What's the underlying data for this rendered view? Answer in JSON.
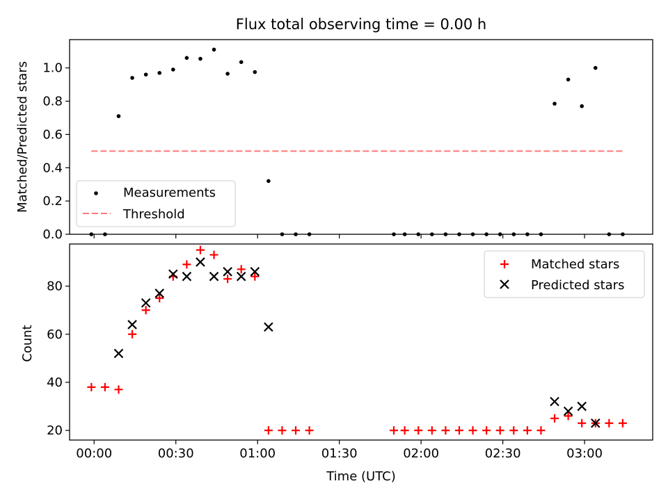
{
  "chart_data": [
    {
      "type": "scatter",
      "panel": "top",
      "title": "Flux total observing time = 0.00 h",
      "xlabel": "",
      "ylabel": "Matched/Predicted stars",
      "xlim": [
        "-00:09",
        "03:25"
      ],
      "ylim": [
        0.0,
        1.17
      ],
      "yticks": [
        0.0,
        0.2,
        0.4,
        0.6,
        0.8,
        1.0
      ],
      "ytick_labels": [
        "0.0",
        "0.2",
        "0.4",
        "0.6",
        "0.8",
        "1.0"
      ],
      "grid": false,
      "legend_position": "bottom-left",
      "series": [
        {
          "name": "Measurements",
          "marker": "dot",
          "color": "#000000",
          "points": [
            [
              "-00:01",
              0.0
            ],
            [
              "00:04",
              0.0
            ],
            [
              "00:09",
              0.71
            ],
            [
              "00:14",
              0.94
            ],
            [
              "00:19",
              0.96
            ],
            [
              "00:24",
              0.97
            ],
            [
              "00:29",
              0.99
            ],
            [
              "00:34",
              1.06
            ],
            [
              "00:39",
              1.055
            ],
            [
              "00:44",
              1.11
            ],
            [
              "00:49",
              0.965
            ],
            [
              "00:54",
              1.035
            ],
            [
              "00:59",
              0.975
            ],
            [
              "01:04",
              0.32
            ],
            [
              "01:09",
              0.0
            ],
            [
              "01:14",
              0.0
            ],
            [
              "01:19",
              0.0
            ],
            [
              "01:50",
              0.0
            ],
            [
              "01:54",
              0.0
            ],
            [
              "01:59",
              0.0
            ],
            [
              "02:04",
              0.0
            ],
            [
              "02:09",
              0.0
            ],
            [
              "02:14",
              0.0
            ],
            [
              "02:19",
              0.0
            ],
            [
              "02:24",
              0.0
            ],
            [
              "02:29",
              0.0
            ],
            [
              "02:34",
              0.0
            ],
            [
              "02:39",
              0.0
            ],
            [
              "02:44",
              0.0
            ],
            [
              "02:49",
              0.785
            ],
            [
              "02:54",
              0.93
            ],
            [
              "02:59",
              0.77
            ],
            [
              "03:04",
              1.0
            ],
            [
              "03:09",
              0.0
            ],
            [
              "03:14",
              0.0
            ]
          ]
        },
        {
          "name": "Threshold",
          "marker": "dashed-line",
          "color": "#ff7777",
          "points": [
            [
              "-00:01",
              0.5
            ],
            [
              "03:14",
              0.5
            ]
          ]
        }
      ]
    },
    {
      "type": "scatter",
      "panel": "bottom",
      "title": "",
      "xlabel": "Time (UTC)",
      "ylabel": "Count",
      "xlim": [
        "-00:09",
        "03:25"
      ],
      "ylim": [
        16,
        97.5
      ],
      "xticks": [
        "00:00",
        "00:30",
        "01:00",
        "01:30",
        "02:00",
        "02:30",
        "03:00"
      ],
      "xtick_labels": [
        "00:00",
        "00:30",
        "01:00",
        "01:30",
        "02:00",
        "02:30",
        "03:00"
      ],
      "yticks": [
        20,
        40,
        60,
        80
      ],
      "ytick_labels": [
        "20",
        "40",
        "60",
        "80"
      ],
      "grid": false,
      "legend_position": "top-right",
      "series": [
        {
          "name": "Matched stars",
          "marker": "plus",
          "color": "#ff0000",
          "points": [
            [
              "-00:01",
              38
            ],
            [
              "00:04",
              38
            ],
            [
              "00:09",
              37
            ],
            [
              "00:14",
              60
            ],
            [
              "00:19",
              70
            ],
            [
              "00:24",
              75
            ],
            [
              "00:29",
              84
            ],
            [
              "00:34",
              89
            ],
            [
              "00:39",
              95
            ],
            [
              "00:44",
              93
            ],
            [
              "00:49",
              83
            ],
            [
              "00:54",
              87
            ],
            [
              "00:59",
              84
            ],
            [
              "01:04",
              20
            ],
            [
              "01:09",
              20
            ],
            [
              "01:14",
              20
            ],
            [
              "01:19",
              20
            ],
            [
              "01:50",
              20
            ],
            [
              "01:54",
              20
            ],
            [
              "01:59",
              20
            ],
            [
              "02:04",
              20
            ],
            [
              "02:09",
              20
            ],
            [
              "02:14",
              20
            ],
            [
              "02:19",
              20
            ],
            [
              "02:24",
              20
            ],
            [
              "02:29",
              20
            ],
            [
              "02:34",
              20
            ],
            [
              "02:39",
              20
            ],
            [
              "02:44",
              20
            ],
            [
              "02:49",
              25
            ],
            [
              "02:54",
              26
            ],
            [
              "02:59",
              23
            ],
            [
              "03:04",
              23
            ],
            [
              "03:09",
              23
            ],
            [
              "03:14",
              23
            ]
          ]
        },
        {
          "name": "Predicted stars",
          "marker": "x",
          "color": "#000000",
          "points": [
            [
              "00:09",
              52
            ],
            [
              "00:14",
              64
            ],
            [
              "00:19",
              73
            ],
            [
              "00:24",
              77
            ],
            [
              "00:29",
              85
            ],
            [
              "00:34",
              84
            ],
            [
              "00:39",
              90
            ],
            [
              "00:44",
              84
            ],
            [
              "00:49",
              86
            ],
            [
              "00:54",
              84
            ],
            [
              "00:59",
              86
            ],
            [
              "01:04",
              63
            ],
            [
              "02:49",
              32
            ],
            [
              "02:54",
              28
            ],
            [
              "02:59",
              30
            ],
            [
              "03:04",
              23
            ]
          ]
        }
      ]
    }
  ]
}
